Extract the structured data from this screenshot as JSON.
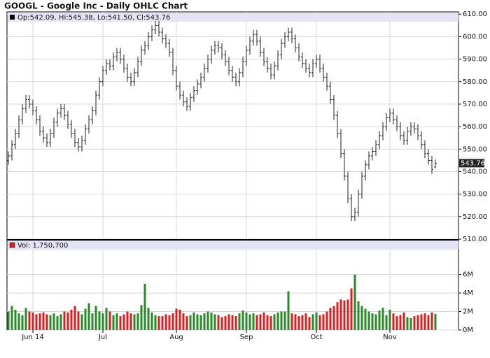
{
  "chart_data": [
    {
      "type": "ohlc",
      "title": "GOOGL - Google Inc - Daily OHLC Chart",
      "legend": "Op:542.09, Hi:545.38, Lo:541.50, Cl:543.76",
      "color": "#222222",
      "open": [
        545,
        547,
        552,
        557,
        563,
        568,
        572,
        570,
        567,
        563,
        558,
        555,
        553,
        557,
        562,
        566,
        568,
        565,
        561,
        557,
        553,
        551,
        554,
        559,
        563,
        567,
        574,
        580,
        585,
        588,
        587,
        591,
        593,
        590,
        586,
        582,
        580,
        584,
        589,
        594,
        596,
        600,
        603,
        605,
        602,
        599,
        597,
        593,
        585,
        578,
        574,
        571,
        569,
        573,
        576,
        579,
        582,
        586,
        590,
        594,
        596,
        595,
        592,
        589,
        585,
        582,
        580,
        584,
        589,
        594,
        598,
        601,
        598,
        593,
        589,
        586,
        583,
        587,
        592,
        597,
        600,
        602,
        599,
        595,
        591,
        588,
        586,
        584,
        588,
        590,
        586,
        582,
        578,
        572,
        565,
        557,
        548,
        538,
        528,
        520,
        522,
        530,
        538,
        543,
        547,
        549,
        552,
        556,
        560,
        564,
        566,
        563,
        560,
        556,
        554,
        558,
        560,
        559,
        556,
        552,
        548,
        545,
        542.09
      ],
      "high": [
        549,
        554,
        559,
        565,
        570,
        574,
        574,
        572,
        569,
        565,
        560,
        557,
        559,
        564,
        568,
        570,
        570,
        567,
        563,
        559,
        555,
        556,
        561,
        565,
        569,
        576,
        582,
        587,
        590,
        590,
        593,
        595,
        595,
        592,
        588,
        584,
        586,
        591,
        596,
        598,
        602,
        605,
        607,
        607,
        604,
        601,
        599,
        595,
        587,
        580,
        576,
        573,
        575,
        578,
        581,
        584,
        588,
        592,
        596,
        598,
        598,
        597,
        594,
        591,
        587,
        584,
        586,
        591,
        596,
        600,
        603,
        603,
        600,
        595,
        591,
        588,
        589,
        594,
        599,
        602,
        604,
        604,
        601,
        597,
        593,
        590,
        588,
        590,
        592,
        592,
        588,
        584,
        580,
        574,
        567,
        559,
        550,
        540,
        530,
        524,
        532,
        540,
        545,
        549,
        551,
        554,
        558,
        562,
        566,
        568,
        568,
        565,
        562,
        558,
        560,
        562,
        562,
        561,
        558,
        554,
        550,
        547,
        545.38
      ],
      "low": [
        543,
        545,
        550,
        555,
        561,
        566,
        568,
        565,
        561,
        556,
        553,
        551,
        551,
        555,
        560,
        564,
        563,
        559,
        555,
        551,
        549,
        549,
        552,
        557,
        561,
        565,
        572,
        578,
        583,
        585,
        585,
        589,
        588,
        584,
        580,
        578,
        578,
        582,
        587,
        592,
        594,
        598,
        601,
        600,
        597,
        595,
        591,
        583,
        576,
        572,
        569,
        567,
        567,
        571,
        574,
        577,
        580,
        584,
        588,
        592,
        593,
        590,
        587,
        583,
        580,
        578,
        578,
        582,
        587,
        592,
        596,
        596,
        591,
        587,
        584,
        581,
        581,
        585,
        590,
        595,
        598,
        597,
        593,
        589,
        586,
        584,
        582,
        582,
        586,
        584,
        580,
        576,
        570,
        563,
        555,
        546,
        536,
        526,
        518,
        518,
        520,
        528,
        536,
        541,
        545,
        547,
        550,
        554,
        558,
        562,
        561,
        558,
        554,
        552,
        552,
        556,
        557,
        554,
        550,
        546,
        543,
        539,
        541.5
      ],
      "close": [
        547,
        552,
        557,
        563,
        568,
        572,
        570,
        567,
        563,
        558,
        555,
        553,
        557,
        562,
        566,
        568,
        565,
        561,
        557,
        553,
        551,
        554,
        559,
        563,
        567,
        574,
        580,
        585,
        588,
        587,
        591,
        593,
        590,
        586,
        582,
        580,
        584,
        589,
        594,
        596,
        600,
        603,
        605,
        602,
        599,
        597,
        593,
        585,
        578,
        574,
        571,
        569,
        573,
        576,
        579,
        582,
        586,
        590,
        594,
        596,
        595,
        592,
        589,
        585,
        582,
        580,
        584,
        589,
        594,
        598,
        601,
        598,
        593,
        589,
        586,
        583,
        587,
        592,
        597,
        600,
        602,
        599,
        595,
        591,
        588,
        586,
        584,
        588,
        590,
        586,
        582,
        578,
        572,
        565,
        557,
        548,
        538,
        528,
        520,
        522,
        530,
        538,
        543,
        547,
        549,
        552,
        556,
        560,
        564,
        566,
        563,
        560,
        556,
        554,
        558,
        560,
        559,
        556,
        552,
        548,
        545,
        541,
        543.76
      ],
      "ylim": [
        510,
        611
      ],
      "yticks": [
        {
          "value": 510,
          "label": "510.00"
        },
        {
          "value": 520,
          "label": "520.00"
        },
        {
          "value": 530,
          "label": "530.00"
        },
        {
          "value": 540,
          "label": "540.00"
        },
        {
          "value": 550,
          "label": "550.00"
        },
        {
          "value": 560,
          "label": "560.00"
        },
        {
          "value": 570,
          "label": "570.00"
        },
        {
          "value": 580,
          "label": "580.00"
        },
        {
          "value": 590,
          "label": "590.00"
        },
        {
          "value": 600,
          "label": "600.00"
        },
        {
          "value": 610,
          "label": "610.00"
        }
      ],
      "xticks": [
        {
          "value": 7,
          "label": "Jun 14"
        },
        {
          "value": 27,
          "label": "Jul"
        },
        {
          "value": 48,
          "label": "Aug"
        },
        {
          "value": 68,
          "label": "Sep"
        },
        {
          "value": 88,
          "label": "Oct"
        },
        {
          "value": 109,
          "label": "Nov"
        }
      ],
      "grid": true
    },
    {
      "type": "volume",
      "legend": "Vol: 1,750,700",
      "up_color": "#2a8a2a",
      "down_color": "#d42020",
      "values": [
        2.0,
        2.6,
        2.2,
        1.8,
        1.6,
        2.4,
        2.0,
        1.9,
        1.7,
        1.8,
        1.9,
        1.7,
        1.6,
        1.8,
        1.5,
        1.7,
        2.0,
        1.9,
        2.2,
        2.6,
        2.0,
        1.7,
        2.3,
        2.9,
        1.8,
        2.6,
        2.0,
        1.8,
        2.4,
        2.0,
        1.6,
        1.8,
        1.5,
        1.7,
        2.0,
        1.8,
        1.7,
        1.8,
        2.7,
        5.0,
        2.4,
        1.9,
        1.6,
        1.5,
        1.5,
        1.7,
        1.6,
        1.8,
        2.3,
        2.2,
        1.8,
        1.5,
        1.6,
        1.9,
        1.7,
        1.6,
        1.8,
        2.0,
        1.9,
        1.7,
        1.6,
        1.4,
        1.5,
        1.7,
        1.6,
        1.5,
        1.8,
        2.1,
        1.9,
        1.7,
        1.8,
        1.6,
        1.7,
        1.9,
        1.6,
        1.5,
        1.7,
        1.9,
        2.0,
        2.0,
        4.2,
        1.8,
        1.7,
        1.5,
        1.6,
        1.8,
        1.4,
        1.7,
        1.9,
        1.6,
        1.7,
        2.0,
        2.4,
        2.6,
        3.0,
        3.3,
        3.2,
        3.3,
        4.5,
        6.0,
        3.1,
        2.6,
        2.3,
        2.0,
        1.8,
        1.7,
        2.1,
        2.4,
        1.6,
        2.2,
        1.8,
        1.5,
        1.6,
        1.9,
        1.4,
        1.3,
        1.5,
        1.6,
        1.7,
        1.8,
        1.6,
        1.9,
        1.7507
      ],
      "ylim": [
        0,
        9.6
      ],
      "yticks": [
        {
          "value": 0,
          "label": "0M"
        },
        {
          "value": 2,
          "label": "2M"
        },
        {
          "value": 4,
          "label": "4M"
        },
        {
          "value": 6,
          "label": "6M"
        }
      ],
      "grid": true
    }
  ]
}
